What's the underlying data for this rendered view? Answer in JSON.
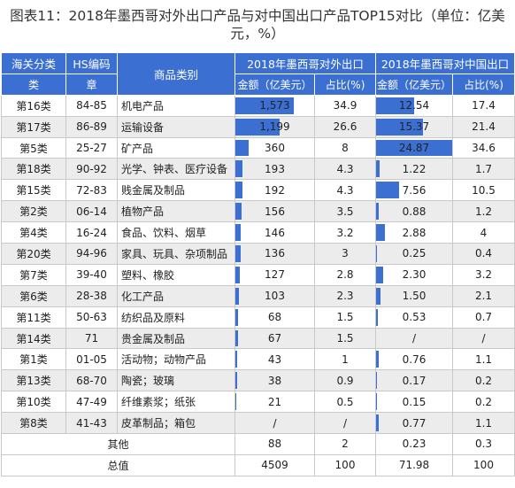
{
  "title": "图表11：2018年墨西哥对外出口产品与对中国出口产品TOP15对比（单位：亿美元，%）",
  "headers": {
    "category_1": "海关分类",
    "category_2": "类",
    "hs_1": "HS编码",
    "hs_2": "章",
    "product": "商品类别",
    "export_total": "2018年墨西哥对外出口",
    "export_china": "2018年墨西哥对中国出口",
    "amount": "金额（亿美元）",
    "share": "占比(%)"
  },
  "rows": [
    {
      "cat": "第16类",
      "hs": "84-85",
      "name": "机电产品",
      "amt": "1,573",
      "pct": "34.9",
      "c_amt": "12.54",
      "c_pct": "17.4",
      "amt_v": 1573,
      "c_amt_v": 12.54
    },
    {
      "cat": "第17类",
      "hs": "86-89",
      "name": "运输设备",
      "amt": "1,199",
      "pct": "26.6",
      "c_amt": "15.37",
      "c_pct": "21.4",
      "amt_v": 1199,
      "c_amt_v": 15.37
    },
    {
      "cat": "第5类",
      "hs": "25-27",
      "name": "矿产品",
      "amt": "360",
      "pct": "8",
      "c_amt": "24.87",
      "c_pct": "34.6",
      "amt_v": 360,
      "c_amt_v": 24.87
    },
    {
      "cat": "第18类",
      "hs": "90-92",
      "name": "光学、钟表、医疗设备",
      "amt": "193",
      "pct": "4.3",
      "c_amt": "1.22",
      "c_pct": "1.7",
      "amt_v": 193,
      "c_amt_v": 1.22
    },
    {
      "cat": "第15类",
      "hs": "72-83",
      "name": "贱金属及制品",
      "amt": "192",
      "pct": "4.3",
      "c_amt": "7.56",
      "c_pct": "10.5",
      "amt_v": 192,
      "c_amt_v": 7.56
    },
    {
      "cat": "第2类",
      "hs": "06-14",
      "name": "植物产品",
      "amt": "156",
      "pct": "3.5",
      "c_amt": "0.88",
      "c_pct": "1.2",
      "amt_v": 156,
      "c_amt_v": 0.88
    },
    {
      "cat": "第4类",
      "hs": "16-24",
      "name": "食品、饮料、烟草",
      "amt": "146",
      "pct": "3.2",
      "c_amt": "2.88",
      "c_pct": "4",
      "amt_v": 146,
      "c_amt_v": 2.88
    },
    {
      "cat": "第20类",
      "hs": "94-96",
      "name": "家具、玩具、杂项制品",
      "amt": "136",
      "pct": "3",
      "c_amt": "0.25",
      "c_pct": "0.4",
      "amt_v": 136,
      "c_amt_v": 0.25
    },
    {
      "cat": "第7类",
      "hs": "39-40",
      "name": "塑料、橡胶",
      "amt": "127",
      "pct": "2.8",
      "c_amt": "2.30",
      "c_pct": "3.2",
      "amt_v": 127,
      "c_amt_v": 2.3
    },
    {
      "cat": "第6类",
      "hs": "28-38",
      "name": "化工产品",
      "amt": "103",
      "pct": "2.3",
      "c_amt": "1.50",
      "c_pct": "2.1",
      "amt_v": 103,
      "c_amt_v": 1.5
    },
    {
      "cat": "第11类",
      "hs": "50-63",
      "name": "纺织品及原料",
      "amt": "68",
      "pct": "1.5",
      "c_amt": "0.53",
      "c_pct": "0.7",
      "amt_v": 68,
      "c_amt_v": 0.53
    },
    {
      "cat": "第14类",
      "hs": "71",
      "name": "贵金属及制品",
      "amt": "67",
      "pct": "1.5",
      "c_amt": "/",
      "c_pct": "/",
      "amt_v": 67,
      "c_amt_v": 0
    },
    {
      "cat": "第1类",
      "hs": "01-05",
      "name": "活动物；动物产品",
      "amt": "43",
      "pct": "1",
      "c_amt": "0.76",
      "c_pct": "1.1",
      "amt_v": 43,
      "c_amt_v": 0.76
    },
    {
      "cat": "第13类",
      "hs": "68-70",
      "name": "陶瓷；玻璃",
      "amt": "38",
      "pct": "0.9",
      "c_amt": "0.17",
      "c_pct": "0.2",
      "amt_v": 38,
      "c_amt_v": 0.17
    },
    {
      "cat": "第10类",
      "hs": "47-49",
      "name": "纤维素浆；纸张",
      "amt": "21",
      "pct": "0.5",
      "c_amt": "0.15",
      "c_pct": "0.2",
      "amt_v": 21,
      "c_amt_v": 0.15
    },
    {
      "cat": "第8类",
      "hs": "41-43",
      "name": "皮革制品；箱包",
      "amt": "/",
      "pct": "/",
      "c_amt": "0.77",
      "c_pct": "1.1",
      "amt_v": 0,
      "c_amt_v": 0.77
    }
  ],
  "other": {
    "label": "其他",
    "amt": "88",
    "pct": "2",
    "c_amt": "0.23",
    "c_pct": "0.3"
  },
  "total": {
    "label": "总值",
    "amt": "4509",
    "pct": "100",
    "c_amt": "71.98",
    "c_pct": "100"
  },
  "scale": {
    "amt_max": 1573,
    "c_amt_max": 24.87
  },
  "colors": {
    "header": "#3b6fd1",
    "bar": "#3b6fd1"
  }
}
